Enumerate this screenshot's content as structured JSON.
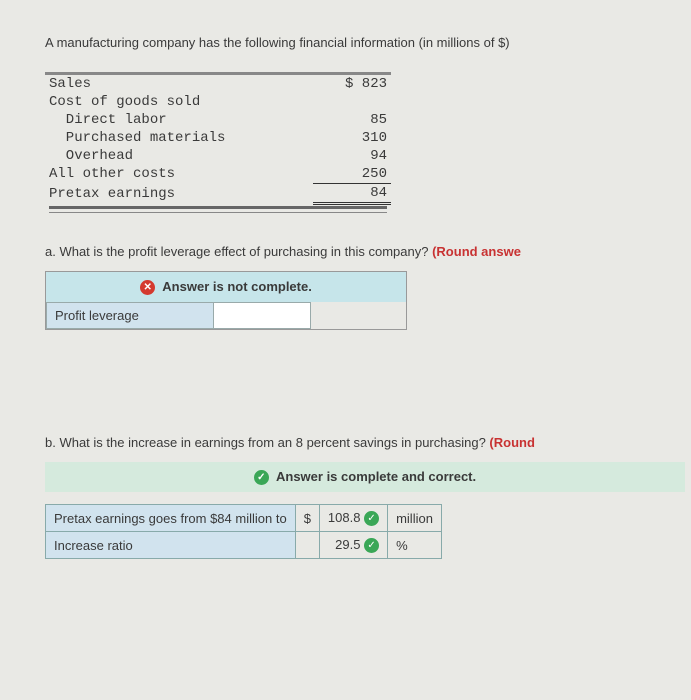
{
  "intro": "A manufacturing company has the following financial information (in millions of $)",
  "fin": {
    "rows": [
      {
        "label": "Sales",
        "value": "$ 823"
      },
      {
        "label": "Cost of goods sold",
        "value": ""
      },
      {
        "label": "  Direct labor",
        "value": "85"
      },
      {
        "label": "  Purchased materials",
        "value": "310"
      },
      {
        "label": "  Overhead",
        "value": "94"
      },
      {
        "label": "All other costs",
        "value": "250"
      },
      {
        "label": "Pretax earnings",
        "value": "84"
      }
    ]
  },
  "qa": {
    "prefix": "a. What is the profit leverage effect of purchasing in this company? ",
    "round": "(Round answe",
    "banner_icon": "✕",
    "banner_text": "Answer is not complete.",
    "row_label": "Profit leverage"
  },
  "qb": {
    "prefix": "b. What is the increase in earnings from an 8 percent savings in purchasing? ",
    "round": "(Round",
    "banner_icon": "✓",
    "banner_text": "Answer is complete and correct.",
    "row1_label": "Pretax earnings goes from $84 million to",
    "row1_cur": "$",
    "row1_val": "108.8",
    "row1_unit": "million",
    "row2_label": "Increase ratio",
    "row2_val": "29.5",
    "row2_unit": "%"
  },
  "colors": {
    "incomplete_bg": "#c6e5ea",
    "complete_bg": "#d5eadd",
    "label_cell_bg": "#d1e3ee",
    "error_icon": "#d43a2f",
    "ok_icon": "#3aa757",
    "hint": "#c83232"
  }
}
